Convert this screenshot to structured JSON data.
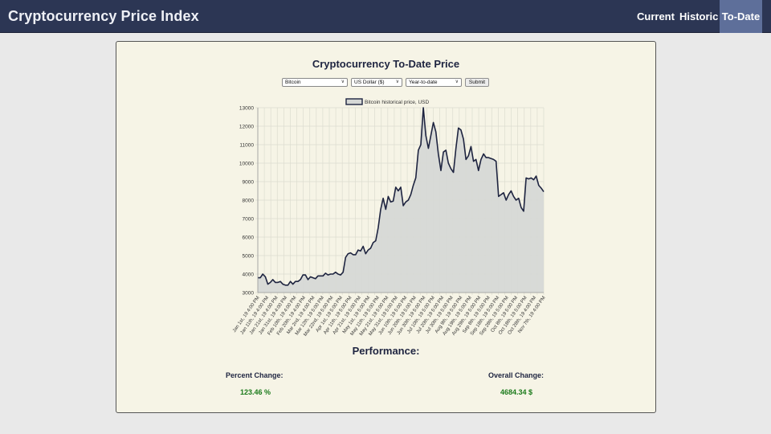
{
  "app": {
    "title": "Cryptocurrency Price Index",
    "nav": [
      {
        "label": "Current",
        "active": false
      },
      {
        "label": "Historic",
        "active": false
      },
      {
        "label": "To-Date",
        "active": true
      }
    ]
  },
  "page": {
    "heading": "Cryptocurrency To-Date Price",
    "form": {
      "coin": "Bitcoin",
      "currency": "US Dollar ($)",
      "range": "Year-to-date",
      "submit_label": "Submit"
    },
    "performance": {
      "title": "Performance:",
      "percent_label": "Percent Change:",
      "percent_value": "123.46 %",
      "overall_label": "Overall Change:",
      "overall_value": "4684.34 $"
    }
  },
  "colors": {
    "navbar": "#2c3654",
    "nav_active": "#5e6f9a",
    "line": "#1e2440",
    "area": "#d6d8d6",
    "positive": "#1a7a1a",
    "panel": "#f6f4e6"
  },
  "chart_data": {
    "type": "area",
    "series": [
      {
        "name": "Bitcoin historical price, USD"
      }
    ],
    "legend_position": "top",
    "grid": true,
    "ylim": [
      3000,
      13000
    ],
    "yticks": [
      3000,
      4000,
      5000,
      6000,
      7000,
      8000,
      9000,
      10000,
      11000,
      12000,
      13000
    ],
    "xtick_labels": [
      "Jan 1st, 19 4:00 PM",
      "Jan 11th, 19 4:00 PM",
      "Jan 21st, 19 4:00 PM",
      "Jan 31st, 19 4:00 PM",
      "Feb 10th, 19 4:00 PM",
      "Feb 20th, 19 4:00 PM",
      "Mar 2nd, 19 4:00 PM",
      "Mar 12th, 19 5:00 PM",
      "Mar 22nd, 19 5:00 PM",
      "Apr 1st, 19 5:00 PM",
      "Apr 11th, 19 5:00 PM",
      "Apr 21st, 19 5:00 PM",
      "May 1st, 19 5:00 PM",
      "May 11th, 19 5:00 PM",
      "May 21st, 19 5:00 PM",
      "May 31st, 19 5:00 PM",
      "Jun 10th, 19 5:00 PM",
      "Jun 20th, 19 5:00 PM",
      "Jun 30th, 19 5:00 PM",
      "Jul 10th, 19 5:00 PM",
      "Jul 20th, 19 5:00 PM",
      "Jul 30th, 19 5:00 PM",
      "Aug 9th, 19 5:00 PM",
      "Aug 19th, 19 5:00 PM",
      "Aug 29th, 19 5:00 PM",
      "Sep 8th, 19 5:00 PM",
      "Sep 18th, 19 5:00 PM",
      "Sep 28th, 19 5:00 PM",
      "Oct 8th, 19 5:00 PM",
      "Oct 18th, 19 5:00 PM",
      "Oct 28th, 19 4:00 PM",
      "Nov 7th, 19 4:00 PM"
    ],
    "values": [
      3800,
      3800,
      4000,
      3850,
      3450,
      3550,
      3700,
      3550,
      3550,
      3600,
      3450,
      3400,
      3400,
      3600,
      3450,
      3600,
      3600,
      3700,
      3950,
      3950,
      3700,
      3850,
      3800,
      3750,
      3900,
      3900,
      3900,
      4050,
      3950,
      4000,
      4000,
      4100,
      4000,
      3950,
      4100,
      4900,
      5100,
      5150,
      5050,
      5050,
      5300,
      5250,
      5500,
      5100,
      5300,
      5400,
      5700,
      5800,
      6500,
      7500,
      8100,
      7500,
      8200,
      7900,
      7950,
      8700,
      8500,
      8700,
      7700,
      7900,
      8000,
      8300,
      8800,
      9200,
      10700,
      11000,
      13000,
      11500,
      10800,
      11500,
      12200,
      11700,
      10500,
      9600,
      10600,
      10700,
      10000,
      9700,
      9500,
      10800,
      11900,
      11800,
      11300,
      10200,
      10400,
      10900,
      10100,
      10200,
      9600,
      10200,
      10500,
      10300,
      10300,
      10250,
      10200,
      10100,
      8200,
      8300,
      8400,
      8000,
      8300,
      8500,
      8200,
      8000,
      8100,
      7600,
      7400,
      9200,
      9150,
      9200,
      9100,
      9300,
      8800,
      8650,
      8450
    ]
  }
}
